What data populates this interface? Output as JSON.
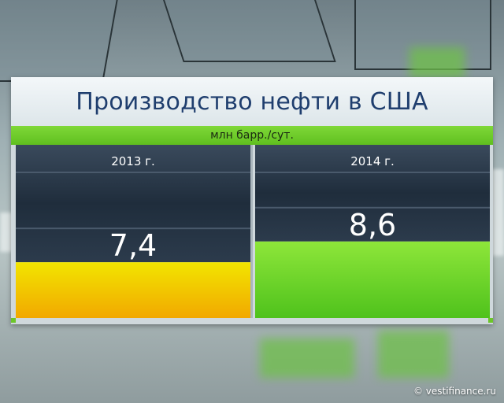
{
  "title": "Производство нефти в США",
  "unit_label": "млн барр./сут.",
  "credit": "© vestifinance.ru",
  "colors": {
    "title_text": "#1f3e6e",
    "header_dark": "#1c2a38",
    "bar_yellow_top": "#f2e500",
    "bar_yellow_bottom": "#f2a800",
    "bar_green_top": "#8ee63a",
    "bar_green_bottom": "#4fc21c",
    "accent_green": "#6cc629"
  },
  "chart_data": {
    "type": "bar",
    "title": "Производство нефти в США",
    "ylabel": "млн барр./сут.",
    "categories": [
      "2013 г.",
      "2014 г."
    ],
    "values": [
      7.4,
      8.6
    ],
    "value_labels": [
      "7,4",
      "8,6"
    ],
    "ylim": [
      0,
      10
    ],
    "grid": false,
    "legend": "none"
  }
}
